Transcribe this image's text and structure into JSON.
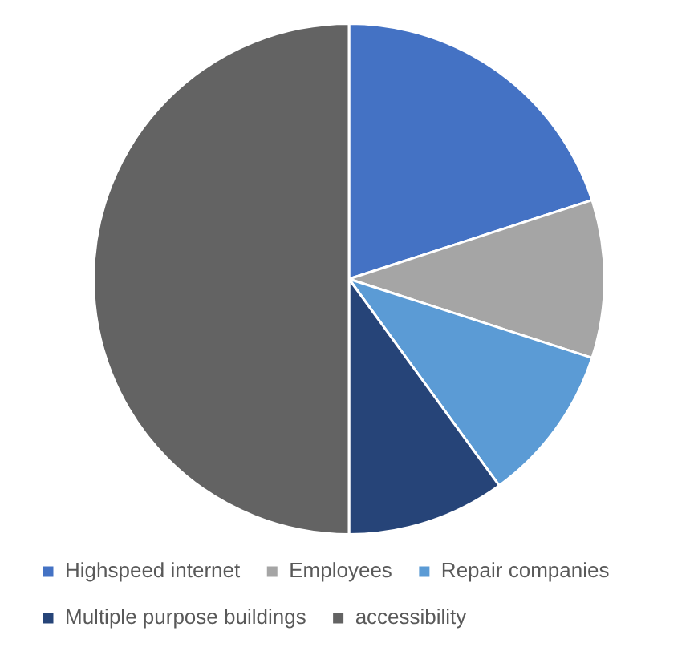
{
  "chart_data": {
    "type": "pie",
    "categories": [
      "Highspeed internet",
      "Employees",
      "Repair companies",
      "Multiple purpose buildings",
      "accessibility"
    ],
    "values": [
      20,
      10,
      10,
      10,
      50
    ],
    "colors": [
      "#4472c4",
      "#a5a5a5",
      "#5b9bd5",
      "#264478",
      "#636363"
    ],
    "legend": "bottom"
  }
}
